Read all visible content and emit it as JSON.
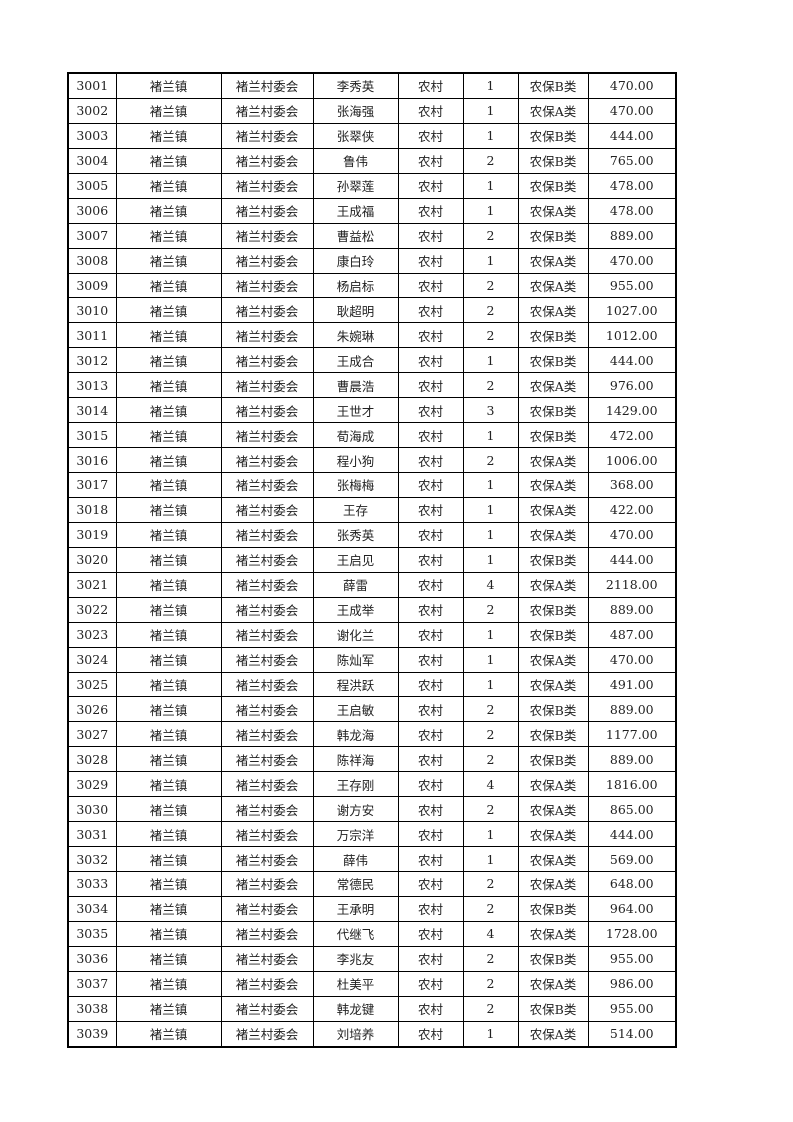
{
  "rows": [
    [
      "3001",
      "褚兰镇",
      "褚兰村委会",
      "李秀英",
      "农村",
      "1",
      "农保B类",
      "470.00"
    ],
    [
      "3002",
      "褚兰镇",
      "褚兰村委会",
      "张海强",
      "农村",
      "1",
      "农保A类",
      "470.00"
    ],
    [
      "3003",
      "褚兰镇",
      "褚兰村委会",
      "张翠侠",
      "农村",
      "1",
      "农保B类",
      "444.00"
    ],
    [
      "3004",
      "褚兰镇",
      "褚兰村委会",
      "鲁伟",
      "农村",
      "2",
      "农保B类",
      "765.00"
    ],
    [
      "3005",
      "褚兰镇",
      "褚兰村委会",
      "孙翠莲",
      "农村",
      "1",
      "农保B类",
      "478.00"
    ],
    [
      "3006",
      "褚兰镇",
      "褚兰村委会",
      "王成福",
      "农村",
      "1",
      "农保A类",
      "478.00"
    ],
    [
      "3007",
      "褚兰镇",
      "褚兰村委会",
      "曹益松",
      "农村",
      "2",
      "农保B类",
      "889.00"
    ],
    [
      "3008",
      "褚兰镇",
      "褚兰村委会",
      "康白玲",
      "农村",
      "1",
      "农保A类",
      "470.00"
    ],
    [
      "3009",
      "褚兰镇",
      "褚兰村委会",
      "杨启标",
      "农村",
      "2",
      "农保A类",
      "955.00"
    ],
    [
      "3010",
      "褚兰镇",
      "褚兰村委会",
      "耿超明",
      "农村",
      "2",
      "农保A类",
      "1027.00"
    ],
    [
      "3011",
      "褚兰镇",
      "褚兰村委会",
      "朱婉琳",
      "农村",
      "2",
      "农保B类",
      "1012.00"
    ],
    [
      "3012",
      "褚兰镇",
      "褚兰村委会",
      "王成合",
      "农村",
      "1",
      "农保B类",
      "444.00"
    ],
    [
      "3013",
      "褚兰镇",
      "褚兰村委会",
      "曹晨浩",
      "农村",
      "2",
      "农保A类",
      "976.00"
    ],
    [
      "3014",
      "褚兰镇",
      "褚兰村委会",
      "王世才",
      "农村",
      "3",
      "农保B类",
      "1429.00"
    ],
    [
      "3015",
      "褚兰镇",
      "褚兰村委会",
      "荀海成",
      "农村",
      "1",
      "农保B类",
      "472.00"
    ],
    [
      "3016",
      "褚兰镇",
      "褚兰村委会",
      "程小狗",
      "农村",
      "2",
      "农保A类",
      "1006.00"
    ],
    [
      "3017",
      "褚兰镇",
      "褚兰村委会",
      "张梅梅",
      "农村",
      "1",
      "农保A类",
      "368.00"
    ],
    [
      "3018",
      "褚兰镇",
      "褚兰村委会",
      "王存",
      "农村",
      "1",
      "农保A类",
      "422.00"
    ],
    [
      "3019",
      "褚兰镇",
      "褚兰村委会",
      "张秀英",
      "农村",
      "1",
      "农保A类",
      "470.00"
    ],
    [
      "3020",
      "褚兰镇",
      "褚兰村委会",
      "王启见",
      "农村",
      "1",
      "农保B类",
      "444.00"
    ],
    [
      "3021",
      "褚兰镇",
      "褚兰村委会",
      "薛雷",
      "农村",
      "4",
      "农保A类",
      "2118.00"
    ],
    [
      "3022",
      "褚兰镇",
      "褚兰村委会",
      "王成举",
      "农村",
      "2",
      "农保B类",
      "889.00"
    ],
    [
      "3023",
      "褚兰镇",
      "褚兰村委会",
      "谢化兰",
      "农村",
      "1",
      "农保B类",
      "487.00"
    ],
    [
      "3024",
      "褚兰镇",
      "褚兰村委会",
      "陈灿军",
      "农村",
      "1",
      "农保A类",
      "470.00"
    ],
    [
      "3025",
      "褚兰镇",
      "褚兰村委会",
      "程洪跃",
      "农村",
      "1",
      "农保A类",
      "491.00"
    ],
    [
      "3026",
      "褚兰镇",
      "褚兰村委会",
      "王启敏",
      "农村",
      "2",
      "农保B类",
      "889.00"
    ],
    [
      "3027",
      "褚兰镇",
      "褚兰村委会",
      "韩龙海",
      "农村",
      "2",
      "农保B类",
      "1177.00"
    ],
    [
      "3028",
      "褚兰镇",
      "褚兰村委会",
      "陈祥海",
      "农村",
      "2",
      "农保B类",
      "889.00"
    ],
    [
      "3029",
      "褚兰镇",
      "褚兰村委会",
      "王存刚",
      "农村",
      "4",
      "农保A类",
      "1816.00"
    ],
    [
      "3030",
      "褚兰镇",
      "褚兰村委会",
      "谢方安",
      "农村",
      "2",
      "农保A类",
      "865.00"
    ],
    [
      "3031",
      "褚兰镇",
      "褚兰村委会",
      "万宗洋",
      "农村",
      "1",
      "农保A类",
      "444.00"
    ],
    [
      "3032",
      "褚兰镇",
      "褚兰村委会",
      "薛伟",
      "农村",
      "1",
      "农保A类",
      "569.00"
    ],
    [
      "3033",
      "褚兰镇",
      "褚兰村委会",
      "常德民",
      "农村",
      "2",
      "农保A类",
      "648.00"
    ],
    [
      "3034",
      "褚兰镇",
      "褚兰村委会",
      "王承明",
      "农村",
      "2",
      "农保B类",
      "964.00"
    ],
    [
      "3035",
      "褚兰镇",
      "褚兰村委会",
      "代继飞",
      "农村",
      "4",
      "农保A类",
      "1728.00"
    ],
    [
      "3036",
      "褚兰镇",
      "褚兰村委会",
      "李兆友",
      "农村",
      "2",
      "农保B类",
      "955.00"
    ],
    [
      "3037",
      "褚兰镇",
      "褚兰村委会",
      "杜美平",
      "农村",
      "2",
      "农保A类",
      "986.00"
    ],
    [
      "3038",
      "褚兰镇",
      "褚兰村委会",
      "韩龙键",
      "农村",
      "2",
      "农保B类",
      "955.00"
    ],
    [
      "3039",
      "褚兰镇",
      "褚兰村委会",
      "刘培养",
      "农村",
      "1",
      "农保A类",
      "514.00"
    ]
  ]
}
